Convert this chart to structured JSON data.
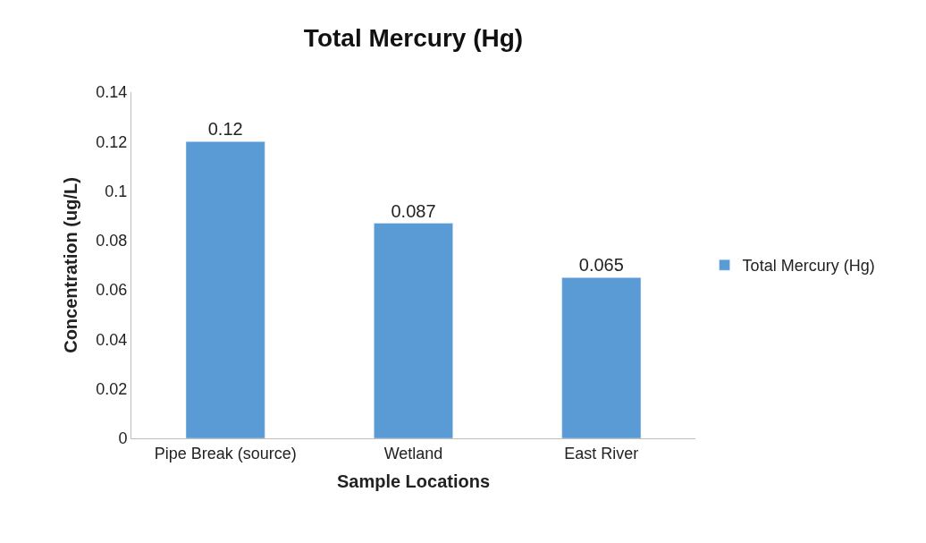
{
  "chart_data": {
    "type": "bar",
    "title": "Total Mercury (Hg)",
    "xlabel": "Sample Locations",
    "ylabel": "Concentration (ug/L)",
    "categories": [
      "Pipe Break (source)",
      "Wetland",
      "East River"
    ],
    "series": [
      {
        "name": "Total Mercury (Hg)",
        "color": "#5b9bd5",
        "values": [
          0.12,
          0.087,
          0.065
        ]
      }
    ],
    "ylim": [
      0,
      0.14
    ],
    "yticks": [
      0,
      0.02,
      0.04,
      0.06,
      0.08,
      0.1,
      0.12,
      0.14
    ],
    "data_labels": true,
    "grid": false,
    "legend": "right"
  }
}
